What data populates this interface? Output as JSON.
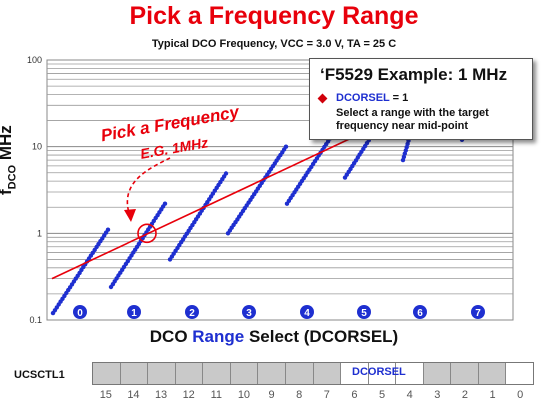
{
  "title": "Pick a Frequency Range",
  "subtitle": "Typical DCO Frequency, VCC = 3.0 V, TA = 25 C",
  "ylabel_main": "f",
  "ylabel_sub": "DCO",
  "ylabel_unit": " MHz",
  "xlabel_a": "DCO ",
  "xlabel_b": "Range",
  "xlabel_c": " Select (DCORSEL)",
  "annotation": {
    "line1": "Pick a Frequency",
    "line2": "E.G. 1MHz"
  },
  "callout": {
    "heading": "‘F5529 Example: 1 MHz",
    "line1_key": "DCORSEL",
    "line1_rest": " = 1",
    "line2": "Select a range with the target frequency near mid-point"
  },
  "register": {
    "name": "UCSCTL1",
    "field": "DCORSEL",
    "bits": [
      "15",
      "14",
      "13",
      "12",
      "11",
      "10",
      "9",
      "8",
      "7",
      "6",
      "5",
      "4",
      "3",
      "2",
      "1",
      "0"
    ]
  },
  "colors": {
    "title": "#e8000b",
    "series": "#1e2fd0",
    "trend": "#e8000b",
    "annotation": "#e8000b"
  },
  "chart_data": {
    "type": "scatter",
    "title": "Pick a Frequency Range",
    "subtitle": "Typical DCO Frequency, VCC = 3.0 V, TA = 25 C",
    "xlabel": "DCO Range Select (DCORSEL)",
    "ylabel": "fDCO MHz",
    "y_scale": "log",
    "ylim": [
      0.1,
      100
    ],
    "y_ticks": [
      "0.1",
      "1",
      "10",
      "100"
    ],
    "x_ticks": [
      "0",
      "1",
      "2",
      "3",
      "4",
      "5",
      "6",
      "7"
    ],
    "grid": true,
    "series": [
      {
        "range": "0",
        "fmin": 0.12,
        "fmax": 1.1
      },
      {
        "range": "1",
        "fmin": 0.24,
        "fmax": 2.2
      },
      {
        "range": "2",
        "fmin": 0.5,
        "fmax": 4.9
      },
      {
        "range": "3",
        "fmin": 1.0,
        "fmax": 10
      },
      {
        "range": "4",
        "fmin": 2.2,
        "fmax": 21
      },
      {
        "range": "5",
        "fmin": 4.4,
        "fmax": 40
      },
      {
        "range": "6",
        "fmin": 7,
        "fmax": 60
      },
      {
        "range": "7",
        "fmin": 12,
        "fmax": 100
      }
    ],
    "trend_line": {
      "x_start": 0,
      "y_start": 0.3,
      "x_end": 5,
      "y_end": 14
    },
    "highlight": {
      "range": "1",
      "frequency_mhz": 1
    }
  }
}
